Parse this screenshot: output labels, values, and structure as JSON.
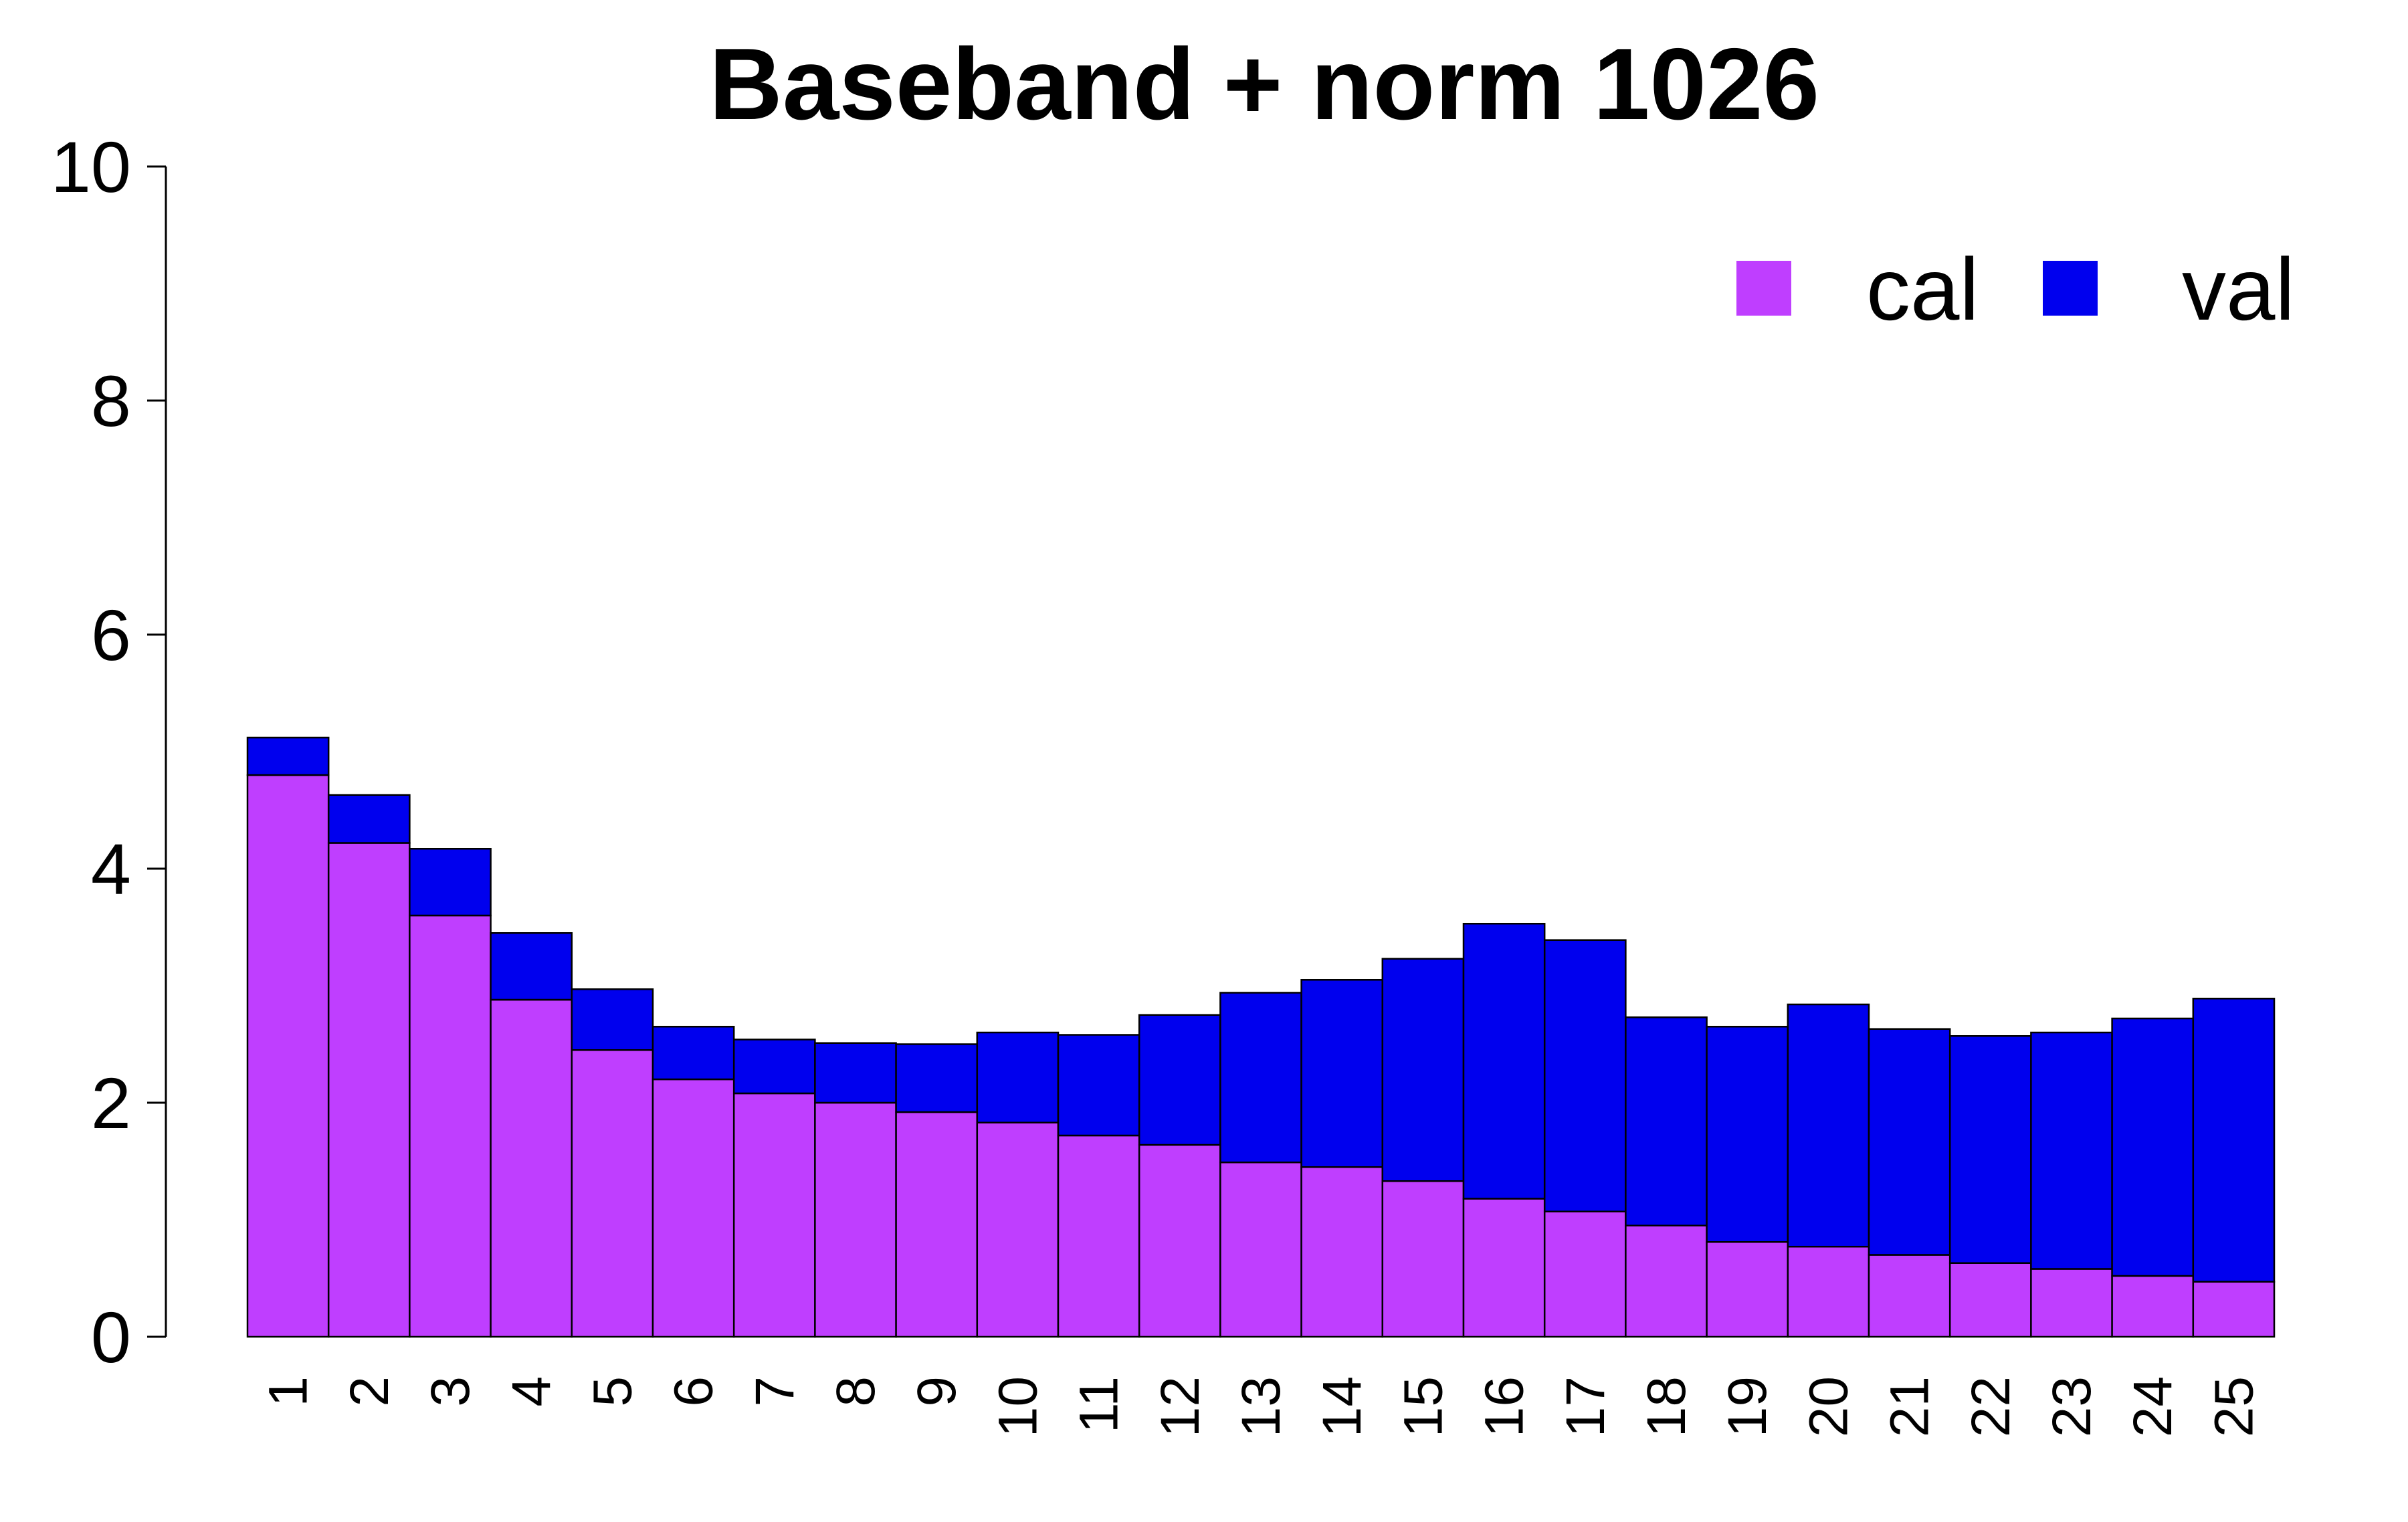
{
  "chart_data": {
    "type": "bar",
    "stacked": true,
    "title": "Baseband + norm 1026",
    "xlabel": "",
    "ylabel": "",
    "ylim": [
      0,
      10
    ],
    "yticks": [
      0,
      2,
      4,
      6,
      8,
      10
    ],
    "categories": [
      "1",
      "2",
      "3",
      "4",
      "5",
      "6",
      "7",
      "8",
      "9",
      "10",
      "11",
      "12",
      "13",
      "14",
      "15",
      "16",
      "17",
      "18",
      "19",
      "20",
      "21",
      "22",
      "23",
      "24",
      "25"
    ],
    "series": [
      {
        "name": "cal",
        "color": "#bf3eff",
        "values": [
          4.8,
          4.22,
          3.6,
          2.88,
          2.45,
          2.2,
          2.08,
          2.0,
          1.92,
          1.83,
          1.72,
          1.64,
          1.49,
          1.45,
          1.33,
          1.18,
          1.07,
          0.95,
          0.81,
          0.77,
          0.7,
          0.63,
          0.58,
          0.52,
          0.47
        ]
      },
      {
        "name": "val",
        "color": "#0000ee",
        "values": [
          0.32,
          0.41,
          0.57,
          0.57,
          0.52,
          0.45,
          0.46,
          0.51,
          0.58,
          0.77,
          0.86,
          1.11,
          1.45,
          1.6,
          1.9,
          2.35,
          2.32,
          1.78,
          1.84,
          2.07,
          1.93,
          1.94,
          2.02,
          2.2,
          2.42
        ]
      }
    ],
    "legend": {
      "placement": "top-right"
    }
  }
}
